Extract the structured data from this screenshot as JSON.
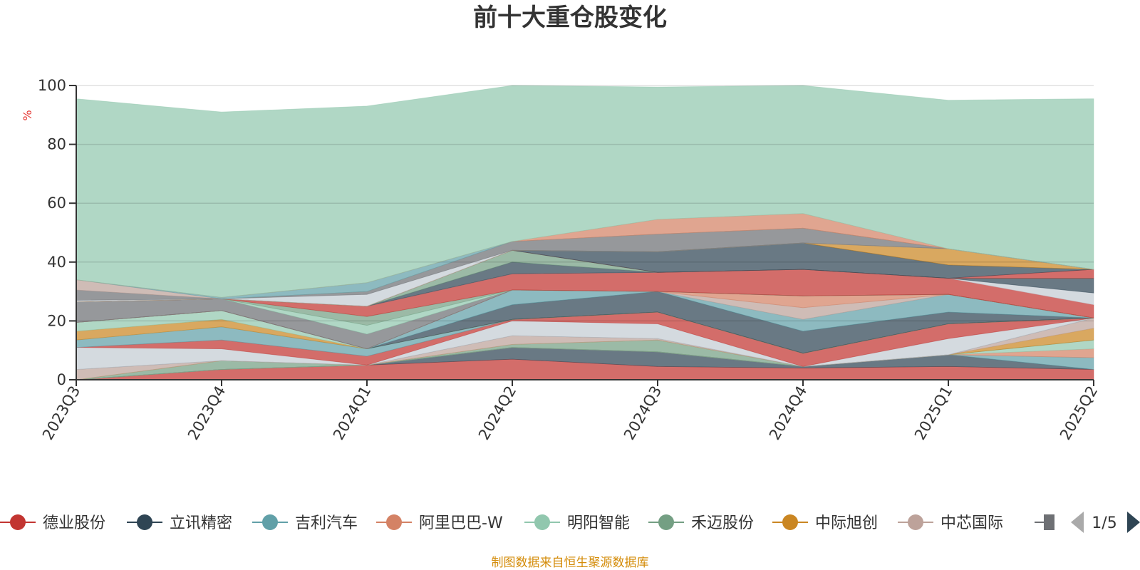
{
  "colors": {
    "accent": "#c23531",
    "footer": "#d48c0a",
    "axis": "#333333",
    "grid": "#cccccc",
    "ylabel": "#e53935",
    "pager_active": "#2f4554",
    "pager_inactive": "#aaaaaa"
  },
  "chart_data": {
    "type": "area",
    "stacked": true,
    "title": "前十大重仓股变化",
    "ylabel": "%",
    "ylim": [
      0,
      100
    ],
    "yticks": [
      "0",
      "20",
      "40",
      "60",
      "80",
      "100"
    ],
    "grid": true,
    "legend_position": "bottom",
    "categories": [
      "2023Q3",
      "2023Q4",
      "2024Q1",
      "2024Q2",
      "2024Q3",
      "2024Q4",
      "2025Q1",
      "2025Q2"
    ],
    "series": [
      {
        "name": "德业股份",
        "color": "#c23531",
        "values": [
          0,
          3.5,
          5,
          7,
          4.5,
          4,
          4.5,
          3.5
        ]
      },
      {
        "name": "立讯精密",
        "color": "#2f4554",
        "values": [
          0,
          0,
          0,
          4,
          5,
          0.5,
          4,
          0
        ]
      },
      {
        "name": "吉利汽车",
        "color": "#61a0a8",
        "values": [
          0,
          0,
          0,
          0,
          0,
          0,
          0,
          4
        ]
      },
      {
        "name": "阿里巴巴-W",
        "color": "#d48265",
        "values": [
          0,
          0,
          0,
          0,
          0,
          0,
          0,
          3
        ]
      },
      {
        "name": "明阳智能",
        "color": "#91c7ae",
        "values": [
          0,
          0,
          0,
          0,
          0,
          0,
          0,
          3
        ]
      },
      {
        "name": "禾迈股份",
        "color": "#749f83",
        "values": [
          0,
          3,
          0,
          1,
          4,
          0,
          0,
          0
        ]
      },
      {
        "name": "中际旭创",
        "color": "#ca8622",
        "values": [
          0,
          0,
          0,
          0,
          0,
          0,
          0,
          4
        ]
      },
      {
        "name": "中芯国际",
        "color": "#bda29a",
        "values": [
          3.5,
          0,
          0,
          3,
          0.5,
          0,
          0,
          3.5
        ]
      },
      {
        "name": "",
        "color": "#6e7074",
        "values": [
          0,
          0,
          0,
          0,
          0,
          0,
          0,
          0
        ]
      },
      {
        "name": "",
        "color": "#c4ccd3",
        "values": [
          7.5,
          4,
          0,
          5,
          5,
          0,
          5.5,
          0
        ]
      },
      {
        "name": "",
        "color": "#c23531",
        "values": [
          0,
          3,
          3,
          0.5,
          4,
          4.5,
          5,
          0
        ]
      },
      {
        "name": "",
        "color": "#61a0a8",
        "values": [
          2.5,
          4.5,
          2.5,
          0,
          0,
          0,
          0,
          0
        ]
      },
      {
        "name": "",
        "color": "#ca8622",
        "values": [
          3,
          2.5,
          0,
          0,
          0,
          0,
          0,
          0
        ]
      },
      {
        "name": "",
        "color": "#91c7ae",
        "values": [
          3,
          3,
          0,
          0,
          0,
          0,
          0,
          0
        ]
      },
      {
        "name": "",
        "color": "#2f4554",
        "values": [
          0,
          0,
          0,
          5,
          7,
          7.5,
          4,
          0
        ]
      },
      {
        "name": "",
        "color": "#61a0a8",
        "values": [
          0,
          0,
          0,
          5,
          0,
          4,
          6,
          0
        ]
      },
      {
        "name": "",
        "color": "#bda29a",
        "values": [
          0,
          0,
          0,
          0,
          0,
          4,
          0,
          0
        ]
      },
      {
        "name": "",
        "color": "#d48265",
        "values": [
          0,
          0,
          0,
          0,
          0,
          4,
          0,
          0
        ]
      },
      {
        "name": "",
        "color": "#6e7074",
        "values": [
          7,
          4,
          5,
          0,
          0,
          0,
          0,
          0
        ]
      },
      {
        "name": "",
        "color": "#91c7ae",
        "values": [
          0,
          0,
          3,
          0,
          0,
          0,
          0,
          0
        ]
      },
      {
        "name": "",
        "color": "#749f83",
        "values": [
          0,
          0,
          3,
          0,
          0,
          0,
          0,
          0
        ]
      },
      {
        "name": "",
        "color": "#c23531",
        "values": [
          0,
          0,
          3.5,
          5.5,
          6.5,
          9,
          5.5,
          4.5
        ]
      },
      {
        "name": "",
        "color": "#c4ccd3",
        "values": [
          0,
          0,
          0,
          0,
          0,
          0,
          0,
          4
        ]
      },
      {
        "name": "",
        "color": "#2f4554",
        "values": [
          0,
          0,
          0,
          4,
          0,
          0,
          0,
          5
        ]
      },
      {
        "name": "",
        "color": "#749f83",
        "values": [
          0,
          0,
          0,
          4,
          0,
          0,
          0,
          0
        ]
      },
      {
        "name": "",
        "color": "#c23531",
        "values": [
          0,
          0,
          0,
          0,
          0,
          0,
          0,
          3
        ]
      },
      {
        "name": "",
        "color": "#2f4554",
        "values": [
          0,
          0,
          0,
          0,
          7,
          9,
          4.5,
          0
        ]
      },
      {
        "name": "",
        "color": "#ca8622",
        "values": [
          0,
          0,
          0,
          0,
          0,
          0,
          5.5,
          0
        ]
      },
      {
        "name": "",
        "color": "#c4ccd3",
        "values": [
          0.5,
          0,
          4,
          0,
          0,
          0,
          0,
          0
        ]
      },
      {
        "name": "",
        "color": "#6e7074",
        "values": [
          3.5,
          0,
          1,
          3,
          6,
          5,
          0,
          0
        ]
      },
      {
        "name": "",
        "color": "#bda29a",
        "values": [
          3.5,
          0,
          0,
          0,
          0,
          0,
          0,
          0
        ]
      },
      {
        "name": "",
        "color": "#61a0a8",
        "values": [
          0,
          0.5,
          3,
          0,
          0,
          0,
          0,
          0
        ]
      },
      {
        "name": "",
        "color": "#d48265",
        "values": [
          0,
          0,
          0,
          0,
          5,
          5,
          0,
          0
        ]
      },
      {
        "name": "",
        "color": "#91c7ae",
        "values": [
          61.5,
          63,
          60,
          53,
          45,
          43.5,
          50.5,
          58
        ]
      }
    ]
  },
  "legend": {
    "items": [
      {
        "label": "德业股份",
        "color": "#c23531"
      },
      {
        "label": "立讯精密",
        "color": "#2f4554"
      },
      {
        "label": "吉利汽车",
        "color": "#61a0a8"
      },
      {
        "label": "阿里巴巴-W",
        "color": "#d48265"
      },
      {
        "label": "明阳智能",
        "color": "#91c7ae"
      },
      {
        "label": "禾迈股份",
        "color": "#749f83"
      },
      {
        "label": "中际旭创",
        "color": "#ca8622"
      },
      {
        "label": "中芯国际",
        "color": "#bda29a"
      }
    ],
    "overflow_color": "#6e7074",
    "page_text": "1/5"
  },
  "footer": {
    "text": "制图数据来自恒生聚源数据库"
  }
}
